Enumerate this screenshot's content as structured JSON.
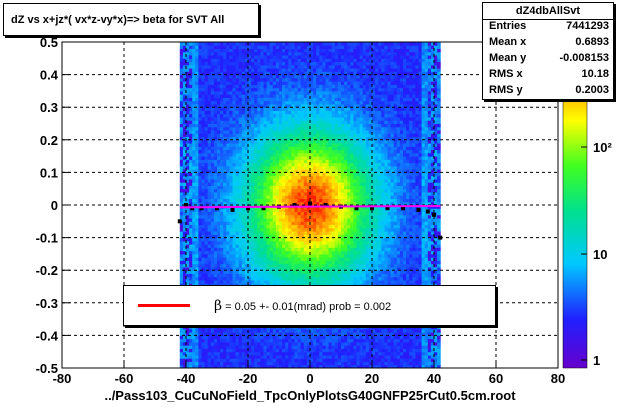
{
  "title": "dZ vs  x+jz*( vx*z-vy*x)=> beta  for SVT All",
  "stats": {
    "name": "dZ4dbAllSvt",
    "rows": [
      {
        "label": "Entries",
        "value": "7441293"
      },
      {
        "label": "Mean x",
        "value": "0.6893"
      },
      {
        "label": "Mean y",
        "value": "-0.008153"
      },
      {
        "label": "RMS x",
        "value": "10.18"
      },
      {
        "label": "RMS y",
        "value": "0.2003"
      }
    ]
  },
  "legend": {
    "symbol": "β",
    "text": " =     0.05 +-     0.01(mrad) prob = 0.002",
    "line_color": "#ff0000"
  },
  "footer": "../Pass103_CuCuNoField_TpcOnlyPlotsG40GNFP25rCut0.5cm.root",
  "chart_data": {
    "type": "heatmap",
    "x_range": [
      -80,
      80
    ],
    "y_range": [
      -0.5,
      0.5
    ],
    "x_ticks": [
      "-80",
      "-60",
      "-40",
      "-20",
      "0",
      "20",
      "40",
      "60",
      "80"
    ],
    "y_ticks": [
      "-0.5",
      "-0.4",
      "-0.3",
      "-0.2",
      "-0.1",
      "0",
      "0.1",
      "0.2",
      "0.3",
      "0.4",
      "0.5"
    ],
    "grid": true,
    "z_scale": "log",
    "z_ticks": [
      "1",
      "10",
      "10²"
    ],
    "occupied_x": [
      -42,
      42
    ],
    "profile": {
      "color": "#000000",
      "x": [
        -42,
        -40,
        -38,
        -35,
        -30,
        -25,
        -20,
        -15,
        -10,
        -5,
        0,
        5,
        10,
        15,
        20,
        25,
        30,
        35,
        38,
        40,
        42
      ],
      "y": [
        -0.05,
        0.0,
        -0.01,
        -0.01,
        -0.01,
        -0.015,
        -0.01,
        -0.01,
        -0.005,
        0.0,
        0.005,
        0.0,
        -0.005,
        -0.01,
        -0.01,
        -0.01,
        -0.01,
        -0.015,
        -0.02,
        -0.03,
        -0.1
      ]
    },
    "fit": {
      "color": "#ff00ff",
      "slope_mrad": 0.05,
      "error_mrad": 0.01,
      "prob": 0.002
    }
  }
}
